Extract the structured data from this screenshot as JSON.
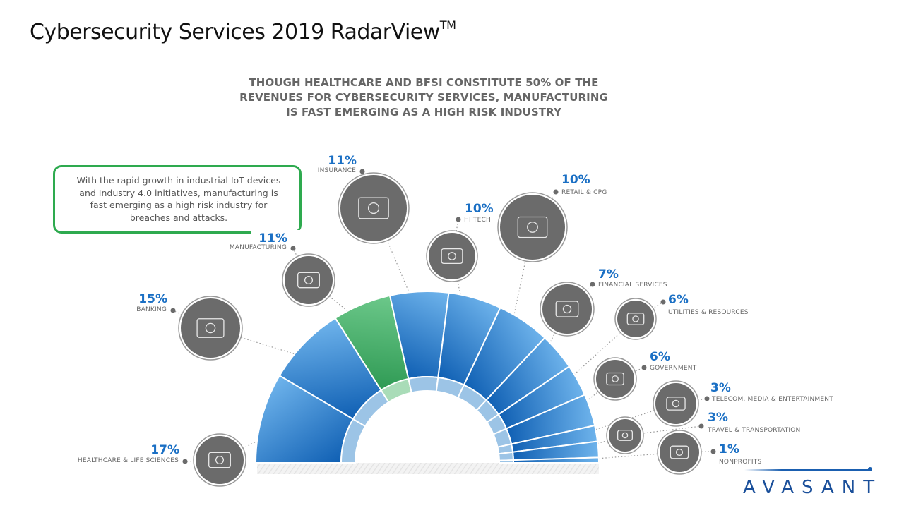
{
  "page": {
    "title": "Cybersecurity Services 2019 RadarView",
    "title_superscript": "TM",
    "subtitle_lines": [
      "THOUGH HEALTHCARE AND BFSI CONSTITUTE 50% OF THE",
      "REVENUES FOR CYBERSECURITY SERVICES, MANUFACTURING",
      "IS FAST EMERGING AS A HIGH RISK INDUSTRY"
    ],
    "callout_lines": [
      "With the rapid growth in industrial IoT devices",
      "and Industry 4.0 initiatives, manufacturing is",
      "fast emerging as a high risk industry for",
      "breaches and attacks."
    ],
    "logo": "AVASANT"
  },
  "colors": {
    "segment_blue_dark": "#0f5fb3",
    "segment_blue_light": "#6fb4ec",
    "segment_green_dark": "#2f9a54",
    "segment_green_light": "#6cc88a",
    "highlight_border": "#2eaa4f",
    "percent_text": "#1a6fc4",
    "icon_fill": "#6b6b6b",
    "logo": "#1a4f9a"
  },
  "chart_data": {
    "type": "pie",
    "subtype": "semicircle-radial",
    "title": "Cybersecurity services revenue share by industry",
    "unit": "%",
    "highlighted": "Manufacturing",
    "categories": [
      "Healthcare & Life Sciences",
      "Banking",
      "Manufacturing",
      "Insurance",
      "Hi Tech",
      "Retail & CPG",
      "Financial Services",
      "Utilities & Resources",
      "Government",
      "Telecom, Media & Entertainment",
      "Travel & Transportation",
      "Nonprofits"
    ],
    "values": [
      17,
      15,
      11,
      11,
      10,
      10,
      7,
      6,
      6,
      3,
      3,
      1
    ],
    "labels": [
      {
        "pct": "17%",
        "name": "HEALTHCARE & LIFE SCIENCES",
        "icon": "medicine-bottles-icon"
      },
      {
        "pct": "15%",
        "name": "BANKING",
        "icon": "money-coins-icon"
      },
      {
        "pct": "11%",
        "name": "MANUFACTURING",
        "icon": "conveyor-boxes-icon"
      },
      {
        "pct": "11%",
        "name": "INSURANCE",
        "icon": "shield-person-icon"
      },
      {
        "pct": "10%",
        "name": "HI TECH",
        "icon": "gear-icon"
      },
      {
        "pct": "10%",
        "name": "RETAIL & CPG",
        "icon": "shopping-cart-icon"
      },
      {
        "pct": "7%",
        "name": "FINANCIAL SERVICES",
        "icon": "laptop-chart-icon"
      },
      {
        "pct": "6%",
        "name": "UTILITIES & RESOURCES",
        "icon": "cubes-icon"
      },
      {
        "pct": "6%",
        "name": "GOVERNMENT",
        "icon": "government-building-icon"
      },
      {
        "pct": "3%",
        "name": "TELECOM, MEDIA & ENTERTAINMENT",
        "icon": "satellite-dish-icon"
      },
      {
        "pct": "3%",
        "name": "TRAVEL & TRANSPORTATION",
        "icon": "suitcase-plane-icon"
      },
      {
        "pct": "1%",
        "name": "NONPROFITS",
        "icon": "heart-hands-icon"
      }
    ]
  }
}
